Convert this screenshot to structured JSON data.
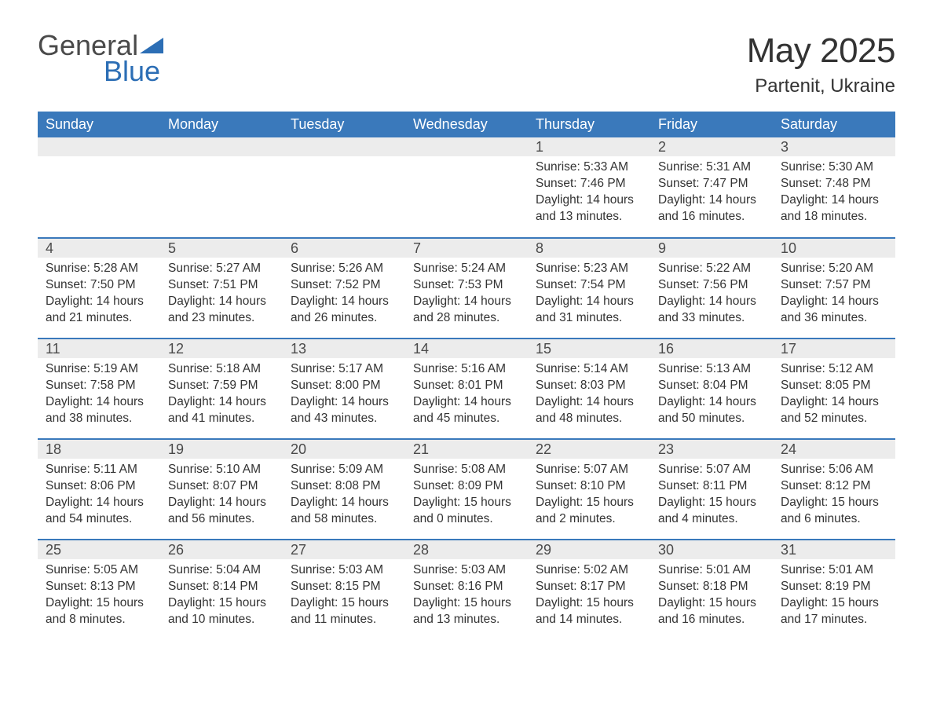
{
  "logo": {
    "word1": "General",
    "word2": "Blue",
    "text_color": "#4a4a4a",
    "accent_color": "#2c6eb5"
  },
  "title": "May 2025",
  "location": "Partenit, Ukraine",
  "colors": {
    "header_bg": "#3a79bb",
    "header_text": "#ffffff",
    "daynum_bg": "#ececec",
    "body_text": "#333333",
    "row_border": "#3a79bb",
    "page_bg": "#ffffff"
  },
  "typography": {
    "title_fontsize": 44,
    "location_fontsize": 24,
    "header_fontsize": 18,
    "daynum_fontsize": 18,
    "data_fontsize": 15.5,
    "font_family": "Arial"
  },
  "weekdays": [
    "Sunday",
    "Monday",
    "Tuesday",
    "Wednesday",
    "Thursday",
    "Friday",
    "Saturday"
  ],
  "weeks": [
    [
      null,
      null,
      null,
      null,
      {
        "n": "1",
        "sunrise": "Sunrise: 5:33 AM",
        "sunset": "Sunset: 7:46 PM",
        "day1": "Daylight: 14 hours",
        "day2": "and 13 minutes."
      },
      {
        "n": "2",
        "sunrise": "Sunrise: 5:31 AM",
        "sunset": "Sunset: 7:47 PM",
        "day1": "Daylight: 14 hours",
        "day2": "and 16 minutes."
      },
      {
        "n": "3",
        "sunrise": "Sunrise: 5:30 AM",
        "sunset": "Sunset: 7:48 PM",
        "day1": "Daylight: 14 hours",
        "day2": "and 18 minutes."
      }
    ],
    [
      {
        "n": "4",
        "sunrise": "Sunrise: 5:28 AM",
        "sunset": "Sunset: 7:50 PM",
        "day1": "Daylight: 14 hours",
        "day2": "and 21 minutes."
      },
      {
        "n": "5",
        "sunrise": "Sunrise: 5:27 AM",
        "sunset": "Sunset: 7:51 PM",
        "day1": "Daylight: 14 hours",
        "day2": "and 23 minutes."
      },
      {
        "n": "6",
        "sunrise": "Sunrise: 5:26 AM",
        "sunset": "Sunset: 7:52 PM",
        "day1": "Daylight: 14 hours",
        "day2": "and 26 minutes."
      },
      {
        "n": "7",
        "sunrise": "Sunrise: 5:24 AM",
        "sunset": "Sunset: 7:53 PM",
        "day1": "Daylight: 14 hours",
        "day2": "and 28 minutes."
      },
      {
        "n": "8",
        "sunrise": "Sunrise: 5:23 AM",
        "sunset": "Sunset: 7:54 PM",
        "day1": "Daylight: 14 hours",
        "day2": "and 31 minutes."
      },
      {
        "n": "9",
        "sunrise": "Sunrise: 5:22 AM",
        "sunset": "Sunset: 7:56 PM",
        "day1": "Daylight: 14 hours",
        "day2": "and 33 minutes."
      },
      {
        "n": "10",
        "sunrise": "Sunrise: 5:20 AM",
        "sunset": "Sunset: 7:57 PM",
        "day1": "Daylight: 14 hours",
        "day2": "and 36 minutes."
      }
    ],
    [
      {
        "n": "11",
        "sunrise": "Sunrise: 5:19 AM",
        "sunset": "Sunset: 7:58 PM",
        "day1": "Daylight: 14 hours",
        "day2": "and 38 minutes."
      },
      {
        "n": "12",
        "sunrise": "Sunrise: 5:18 AM",
        "sunset": "Sunset: 7:59 PM",
        "day1": "Daylight: 14 hours",
        "day2": "and 41 minutes."
      },
      {
        "n": "13",
        "sunrise": "Sunrise: 5:17 AM",
        "sunset": "Sunset: 8:00 PM",
        "day1": "Daylight: 14 hours",
        "day2": "and 43 minutes."
      },
      {
        "n": "14",
        "sunrise": "Sunrise: 5:16 AM",
        "sunset": "Sunset: 8:01 PM",
        "day1": "Daylight: 14 hours",
        "day2": "and 45 minutes."
      },
      {
        "n": "15",
        "sunrise": "Sunrise: 5:14 AM",
        "sunset": "Sunset: 8:03 PM",
        "day1": "Daylight: 14 hours",
        "day2": "and 48 minutes."
      },
      {
        "n": "16",
        "sunrise": "Sunrise: 5:13 AM",
        "sunset": "Sunset: 8:04 PM",
        "day1": "Daylight: 14 hours",
        "day2": "and 50 minutes."
      },
      {
        "n": "17",
        "sunrise": "Sunrise: 5:12 AM",
        "sunset": "Sunset: 8:05 PM",
        "day1": "Daylight: 14 hours",
        "day2": "and 52 minutes."
      }
    ],
    [
      {
        "n": "18",
        "sunrise": "Sunrise: 5:11 AM",
        "sunset": "Sunset: 8:06 PM",
        "day1": "Daylight: 14 hours",
        "day2": "and 54 minutes."
      },
      {
        "n": "19",
        "sunrise": "Sunrise: 5:10 AM",
        "sunset": "Sunset: 8:07 PM",
        "day1": "Daylight: 14 hours",
        "day2": "and 56 minutes."
      },
      {
        "n": "20",
        "sunrise": "Sunrise: 5:09 AM",
        "sunset": "Sunset: 8:08 PM",
        "day1": "Daylight: 14 hours",
        "day2": "and 58 minutes."
      },
      {
        "n": "21",
        "sunrise": "Sunrise: 5:08 AM",
        "sunset": "Sunset: 8:09 PM",
        "day1": "Daylight: 15 hours",
        "day2": "and 0 minutes."
      },
      {
        "n": "22",
        "sunrise": "Sunrise: 5:07 AM",
        "sunset": "Sunset: 8:10 PM",
        "day1": "Daylight: 15 hours",
        "day2": "and 2 minutes."
      },
      {
        "n": "23",
        "sunrise": "Sunrise: 5:07 AM",
        "sunset": "Sunset: 8:11 PM",
        "day1": "Daylight: 15 hours",
        "day2": "and 4 minutes."
      },
      {
        "n": "24",
        "sunrise": "Sunrise: 5:06 AM",
        "sunset": "Sunset: 8:12 PM",
        "day1": "Daylight: 15 hours",
        "day2": "and 6 minutes."
      }
    ],
    [
      {
        "n": "25",
        "sunrise": "Sunrise: 5:05 AM",
        "sunset": "Sunset: 8:13 PM",
        "day1": "Daylight: 15 hours",
        "day2": "and 8 minutes."
      },
      {
        "n": "26",
        "sunrise": "Sunrise: 5:04 AM",
        "sunset": "Sunset: 8:14 PM",
        "day1": "Daylight: 15 hours",
        "day2": "and 10 minutes."
      },
      {
        "n": "27",
        "sunrise": "Sunrise: 5:03 AM",
        "sunset": "Sunset: 8:15 PM",
        "day1": "Daylight: 15 hours",
        "day2": "and 11 minutes."
      },
      {
        "n": "28",
        "sunrise": "Sunrise: 5:03 AM",
        "sunset": "Sunset: 8:16 PM",
        "day1": "Daylight: 15 hours",
        "day2": "and 13 minutes."
      },
      {
        "n": "29",
        "sunrise": "Sunrise: 5:02 AM",
        "sunset": "Sunset: 8:17 PM",
        "day1": "Daylight: 15 hours",
        "day2": "and 14 minutes."
      },
      {
        "n": "30",
        "sunrise": "Sunrise: 5:01 AM",
        "sunset": "Sunset: 8:18 PM",
        "day1": "Daylight: 15 hours",
        "day2": "and 16 minutes."
      },
      {
        "n": "31",
        "sunrise": "Sunrise: 5:01 AM",
        "sunset": "Sunset: 8:19 PM",
        "day1": "Daylight: 15 hours",
        "day2": "and 17 minutes."
      }
    ]
  ]
}
